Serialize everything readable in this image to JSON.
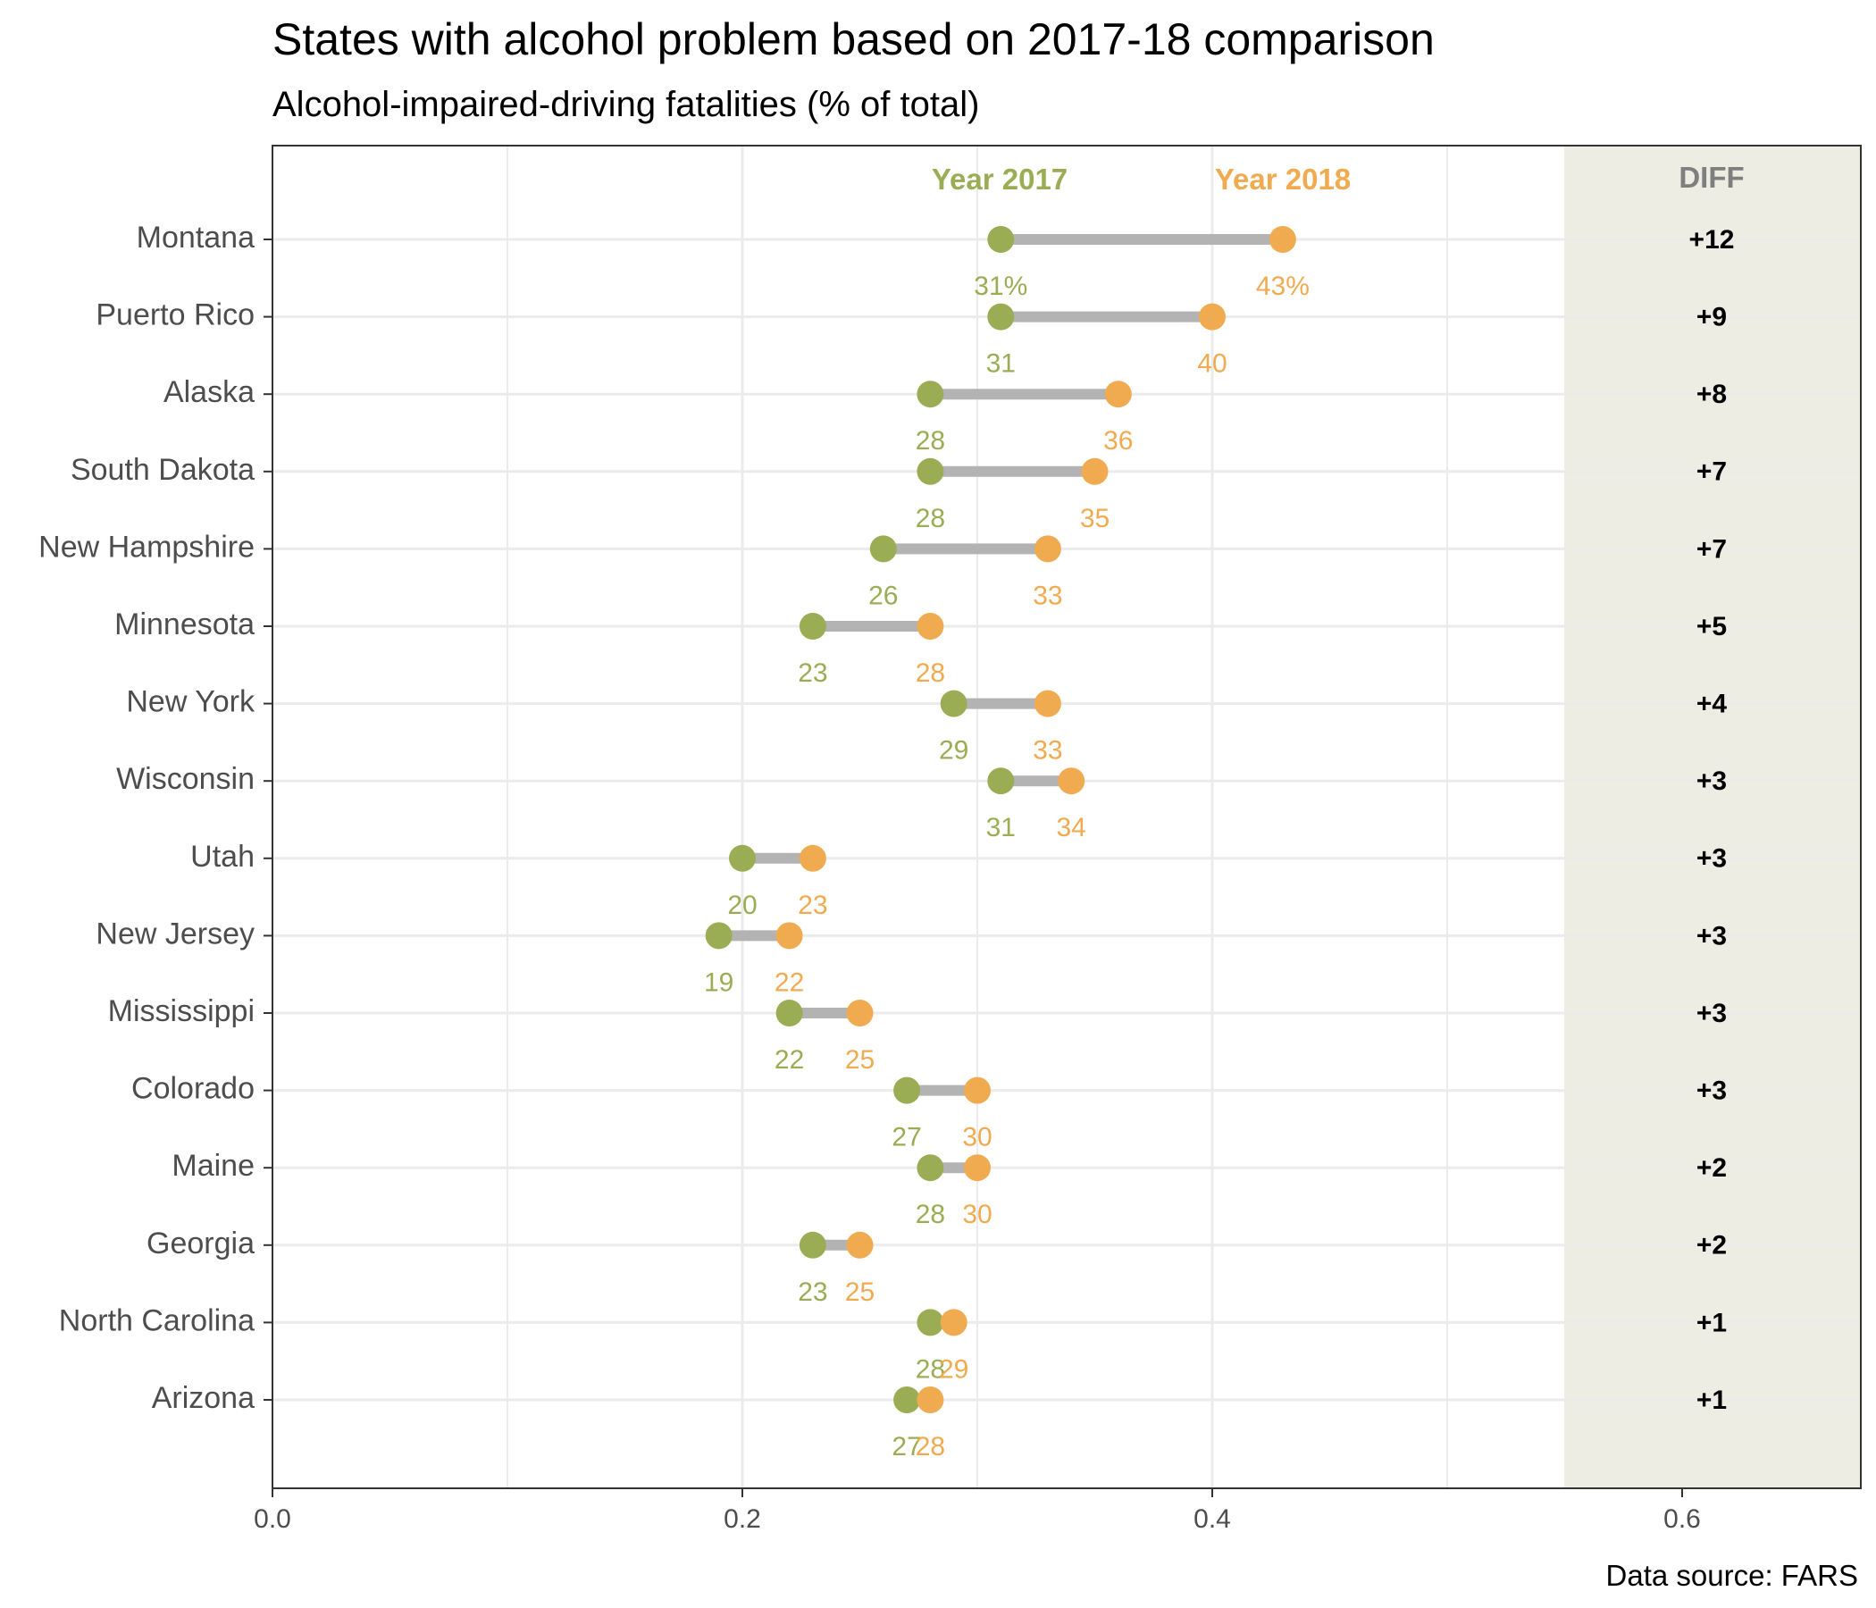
{
  "title": "States with alcohol problem based on 2017-18 comparison",
  "subtitle": "Alcohol-impaired-driving fatalities (% of total)",
  "source": "Data source: FARS",
  "legend": {
    "year2017": "Year 2017",
    "year2018": "Year 2018"
  },
  "diff_header": "DIFF",
  "colors": {
    "year2017": "#9aad55",
    "year2018": "#f0ab50",
    "segment": "#b3b3b3",
    "diff_panel": "#edede3",
    "grid": "#ebebeb"
  },
  "chart_data": {
    "type": "dumbbell",
    "title": "States with alcohol problem based on 2017-18 comparison",
    "subtitle": "Alcohol-impaired-driving fatalities (% of total)",
    "xlabel": "",
    "ylabel": "",
    "xlim": [
      0,
      0.675
    ],
    "x_ticks": [
      "0.0",
      "0.2",
      "0.4",
      "0.6"
    ],
    "x_tick_values": [
      0,
      0.2,
      0.4,
      0.6
    ],
    "grid": true,
    "legend_position": "top",
    "categories": [
      "Montana",
      "Puerto Rico",
      "Alaska",
      "South Dakota",
      "New Hampshire",
      "Minnesota",
      "New York",
      "Wisconsin",
      "Utah",
      "New Jersey",
      "Mississippi",
      "Colorado",
      "Maine",
      "Georgia",
      "North Carolina",
      "Arizona"
    ],
    "series": [
      {
        "name": "Year 2017",
        "values": [
          0.31,
          0.31,
          0.28,
          0.28,
          0.26,
          0.23,
          0.29,
          0.31,
          0.2,
          0.19,
          0.22,
          0.27,
          0.28,
          0.23,
          0.28,
          0.27
        ]
      },
      {
        "name": "Year 2018",
        "values": [
          0.43,
          0.4,
          0.36,
          0.35,
          0.33,
          0.28,
          0.33,
          0.34,
          0.23,
          0.22,
          0.25,
          0.3,
          0.3,
          0.25,
          0.29,
          0.28
        ]
      }
    ],
    "labels_2017": [
      "31%",
      "31",
      "28",
      "28",
      "26",
      "23",
      "29",
      "31",
      "20",
      "19",
      "22",
      "27",
      "28",
      "23",
      "28",
      "27"
    ],
    "labels_2018": [
      "43%",
      "40",
      "36",
      "35",
      "33",
      "28",
      "33",
      "34",
      "23",
      "22",
      "25",
      "30",
      "30",
      "25",
      "29",
      "28"
    ],
    "diff": [
      "+12",
      "+9",
      "+8",
      "+7",
      "+7",
      "+5",
      "+4",
      "+3",
      "+3",
      "+3",
      "+3",
      "+3",
      "+2",
      "+2",
      "+1",
      "+1"
    ],
    "diff_panel_x": 0.6
  }
}
